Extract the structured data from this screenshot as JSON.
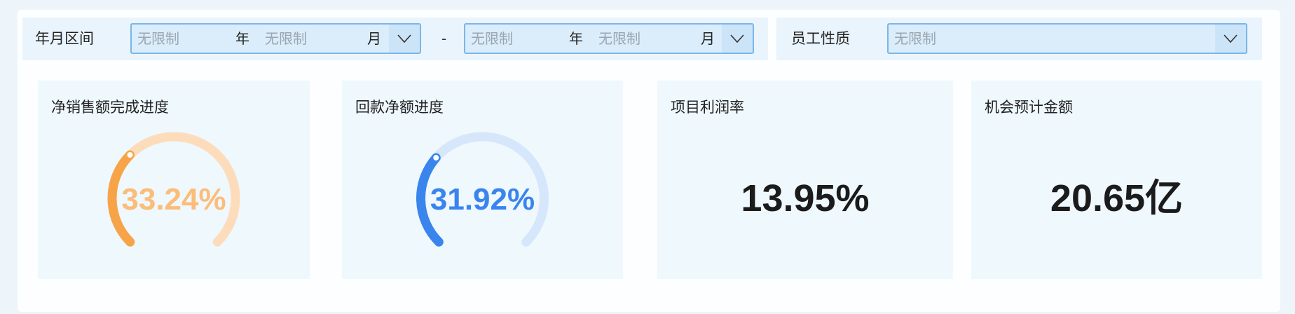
{
  "filters": {
    "period_label": "年月区间",
    "start": {
      "year_placeholder": "无限制",
      "year_unit": "年",
      "month_placeholder": "无限制",
      "month_unit": "月"
    },
    "separator": "-",
    "end": {
      "year_placeholder": "无限制",
      "year_unit": "年",
      "month_placeholder": "无限制",
      "month_unit": "月"
    },
    "employee_type_label": "员工性质",
    "employee_type_placeholder": "无限制"
  },
  "cards": [
    {
      "title": "净销售额完成进度",
      "value": "33.24%",
      "percent": 33.24,
      "color": "#f7a449",
      "track_color": "#fddcbb",
      "text_color": "#fbbd7a"
    },
    {
      "title": "回款净额进度",
      "value": "31.92%",
      "percent": 31.92,
      "color": "#3a84ee",
      "track_color": "#d6e6fb",
      "text_color": "#3a84ee"
    },
    {
      "title": "项目利润率",
      "value": "13.95%"
    },
    {
      "title": "机会预计金额",
      "value": "20.65亿"
    }
  ]
}
